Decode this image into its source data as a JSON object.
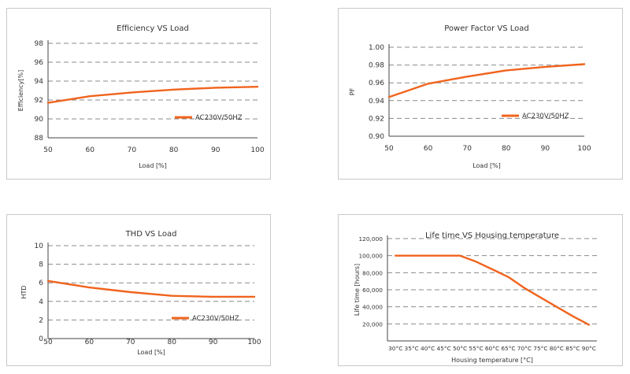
{
  "chart_data": [
    {
      "type": "line",
      "title": "Efficiency VS Load",
      "xlabel": "Load [%]",
      "ylabel": "Efficiency[%]",
      "x": [
        50,
        60,
        70,
        80,
        90,
        100
      ],
      "xticks": [
        "50",
        "60",
        "70",
        "80",
        "90",
        "100"
      ],
      "yticks": [
        "88",
        "90",
        "92",
        "94",
        "96",
        "98"
      ],
      "xlim": [
        50,
        100
      ],
      "ylim": [
        88,
        98
      ],
      "grid": "horizontal dashed",
      "legend_position": "lower-right",
      "series": [
        {
          "name": "AC230V/50HZ",
          "color": "#f0641e",
          "values": [
            91.7,
            92.4,
            92.8,
            93.1,
            93.3,
            93.4
          ]
        }
      ]
    },
    {
      "type": "line",
      "title": "Power Factor VS Load",
      "xlabel": "Load [%]",
      "ylabel": "PF",
      "x": [
        50,
        60,
        70,
        80,
        90,
        100
      ],
      "xticks": [
        "50",
        "60",
        "70",
        "80",
        "90",
        "100"
      ],
      "yticks": [
        "0.90",
        "0.92",
        "0.94",
        "0.96",
        "0.98",
        "1.00"
      ],
      "xlim": [
        50,
        100
      ],
      "ylim": [
        0.9,
        1.0
      ],
      "grid": "horizontal dashed",
      "legend_position": "lower-right",
      "series": [
        {
          "name": "AC230V/50HZ",
          "color": "#f0641e",
          "values": [
            0.944,
            0.959,
            0.967,
            0.974,
            0.978,
            0.981
          ]
        }
      ]
    },
    {
      "type": "line",
      "title": "THD VS Load",
      "xlabel": "Load [%]",
      "ylabel": "HTD",
      "x": [
        50,
        60,
        70,
        80,
        90,
        100
      ],
      "xticks": [
        "50",
        "60",
        "70",
        "80",
        "90",
        "100"
      ],
      "yticks": [
        "0",
        "2",
        "4",
        "6",
        "8",
        "10"
      ],
      "xlim": [
        50,
        100
      ],
      "ylim": [
        0,
        10
      ],
      "grid": "horizontal dashed",
      "legend_position": "lower-right",
      "series": [
        {
          "name": "AC230V/50HZ",
          "color": "#f0641e",
          "values": [
            6.2,
            5.5,
            5.0,
            4.6,
            4.5,
            4.5
          ]
        }
      ]
    },
    {
      "type": "line",
      "title": "Life time VS Housing temperature",
      "xlabel": "Housing temperature [°C]",
      "ylabel": "Life time [hours]",
      "xticks": [
        "30°C",
        "35°C",
        "40°C",
        "45°C",
        "50°C",
        "55°C",
        "60°C",
        "65°C",
        "70°C",
        "75°C",
        "80°C",
        "85°C",
        "90°C"
      ],
      "x": [
        30,
        35,
        40,
        45,
        50,
        55,
        60,
        65,
        70,
        75,
        80,
        85,
        90
      ],
      "yticks": [
        "20,000",
        "40,000",
        "60,000",
        "80,000",
        "100,000",
        "120,000"
      ],
      "xlim": [
        27.5,
        92.5
      ],
      "ylim": [
        0,
        120000
      ],
      "grid": "horizontal dashed",
      "legend_position": "none",
      "series": [
        {
          "color": "#f0641e",
          "values": [
            100000,
            100000,
            100000,
            100000,
            100000,
            93000,
            84000,
            75000,
            62000,
            51000,
            40000,
            29000,
            19000
          ]
        }
      ]
    }
  ]
}
